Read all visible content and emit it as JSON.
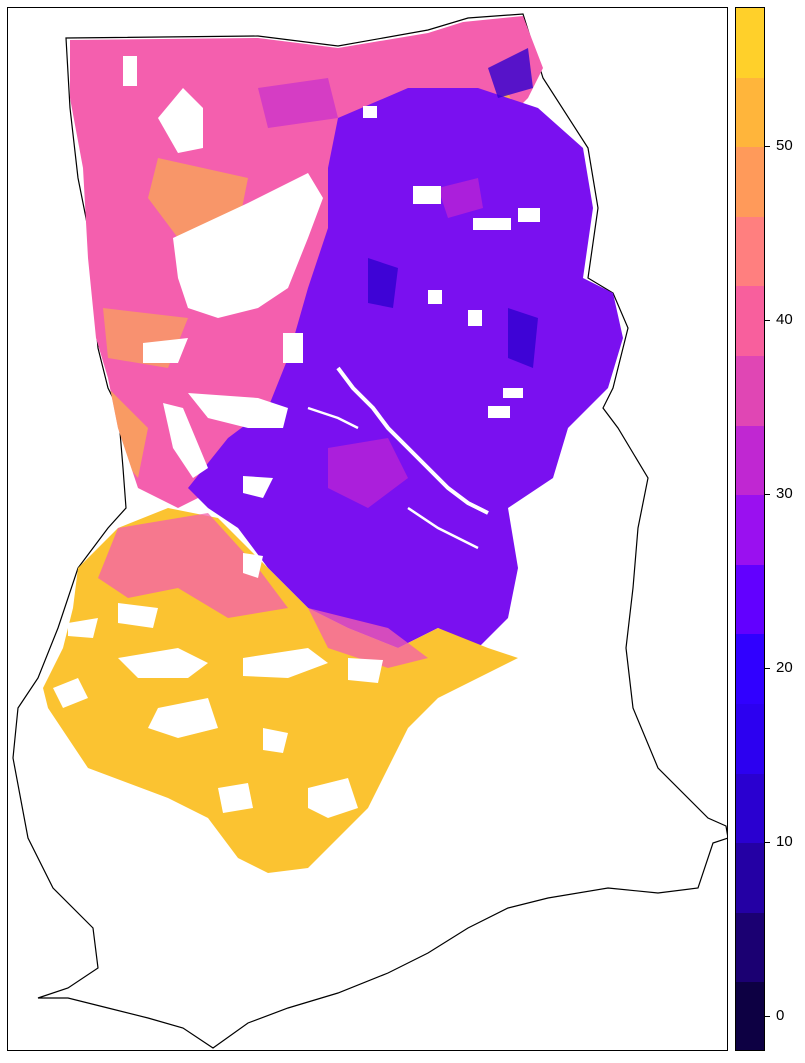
{
  "map": {
    "country": "Ghana",
    "fill_colors": {
      "north": "#f45fae",
      "center": "#7a10f0",
      "south": "#fbc331",
      "outline": "#000000"
    }
  },
  "legend": {
    "min": -2,
    "max": 58,
    "step": 4,
    "tick_values": [
      0,
      10,
      20,
      30,
      40,
      50
    ],
    "tick_labels": [
      "0",
      "10",
      "20",
      "30",
      "40",
      "50"
    ],
    "colors": [
      "#0d0043",
      "#1b0072",
      "#2400a4",
      "#2a00d0",
      "#2c00f0",
      "#3000ff",
      "#6200ff",
      "#9a10f0",
      "#c027d2",
      "#e046b4",
      "#f85f9d",
      "#ff7f7f",
      "#ff9a5a",
      "#ffb53b",
      "#ffd02a",
      "#ffec3a"
    ]
  }
}
